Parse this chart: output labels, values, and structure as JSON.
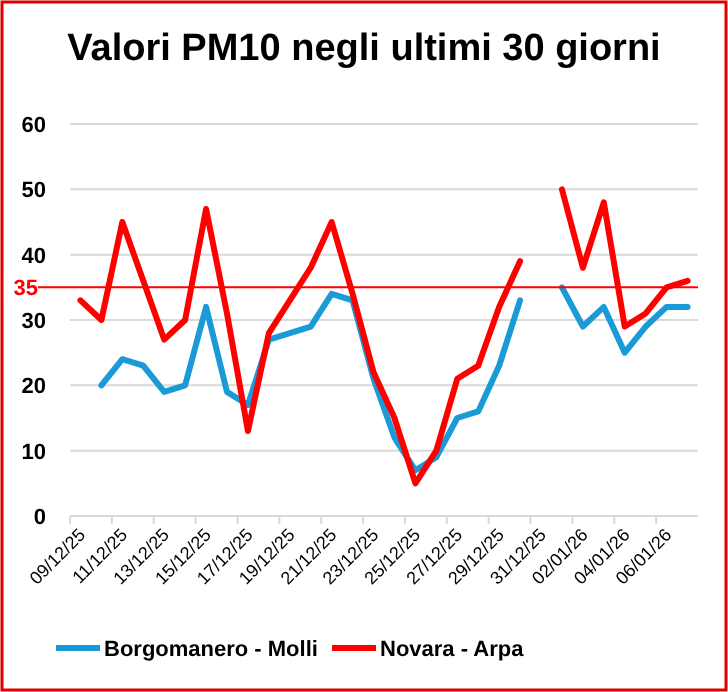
{
  "chart_data": {
    "type": "line",
    "title": "Valori PM10 negli ultimi 30 giorni",
    "categories": [
      "09/12/25",
      null,
      "11/12/25",
      null,
      "13/12/25",
      null,
      "15/12/25",
      null,
      "17/12/25",
      null,
      "19/12/25",
      null,
      "21/12/25",
      null,
      "23/12/25",
      null,
      "25/12/25",
      null,
      "27/12/25",
      null,
      "29/12/25",
      null,
      "31/12/25",
      null,
      "02/01/26",
      null,
      "04/01/26",
      null,
      "06/01/26",
      null
    ],
    "series": [
      {
        "name": "Borgomanero - Molli",
        "color": "#1a9ad6",
        "values": [
          null,
          20,
          24,
          23,
          19,
          20,
          32,
          19,
          17,
          27,
          28,
          29,
          34,
          33,
          21,
          12,
          7,
          9,
          15,
          16,
          23,
          33,
          null,
          35,
          29,
          32,
          25,
          29,
          32,
          32
        ]
      },
      {
        "name": "Novara - Arpa",
        "color": "#ff0000",
        "values": [
          33,
          30,
          45,
          36,
          27,
          30,
          47,
          31,
          13,
          28,
          33,
          38,
          45,
          34,
          22,
          15,
          5,
          10,
          21,
          23,
          32,
          39,
          null,
          50,
          38,
          48,
          29,
          31,
          35,
          36
        ]
      }
    ],
    "ylim": [
      0,
      60
    ],
    "yticks": [
      0,
      10,
      20,
      30,
      40,
      50,
      60
    ],
    "grid": "y",
    "legend": "bottom",
    "marker": "none",
    "line_style": "solid",
    "ref_lines": [
      {
        "axis": "y",
        "value": 35,
        "label": "35",
        "color": "#ff0000"
      }
    ]
  }
}
